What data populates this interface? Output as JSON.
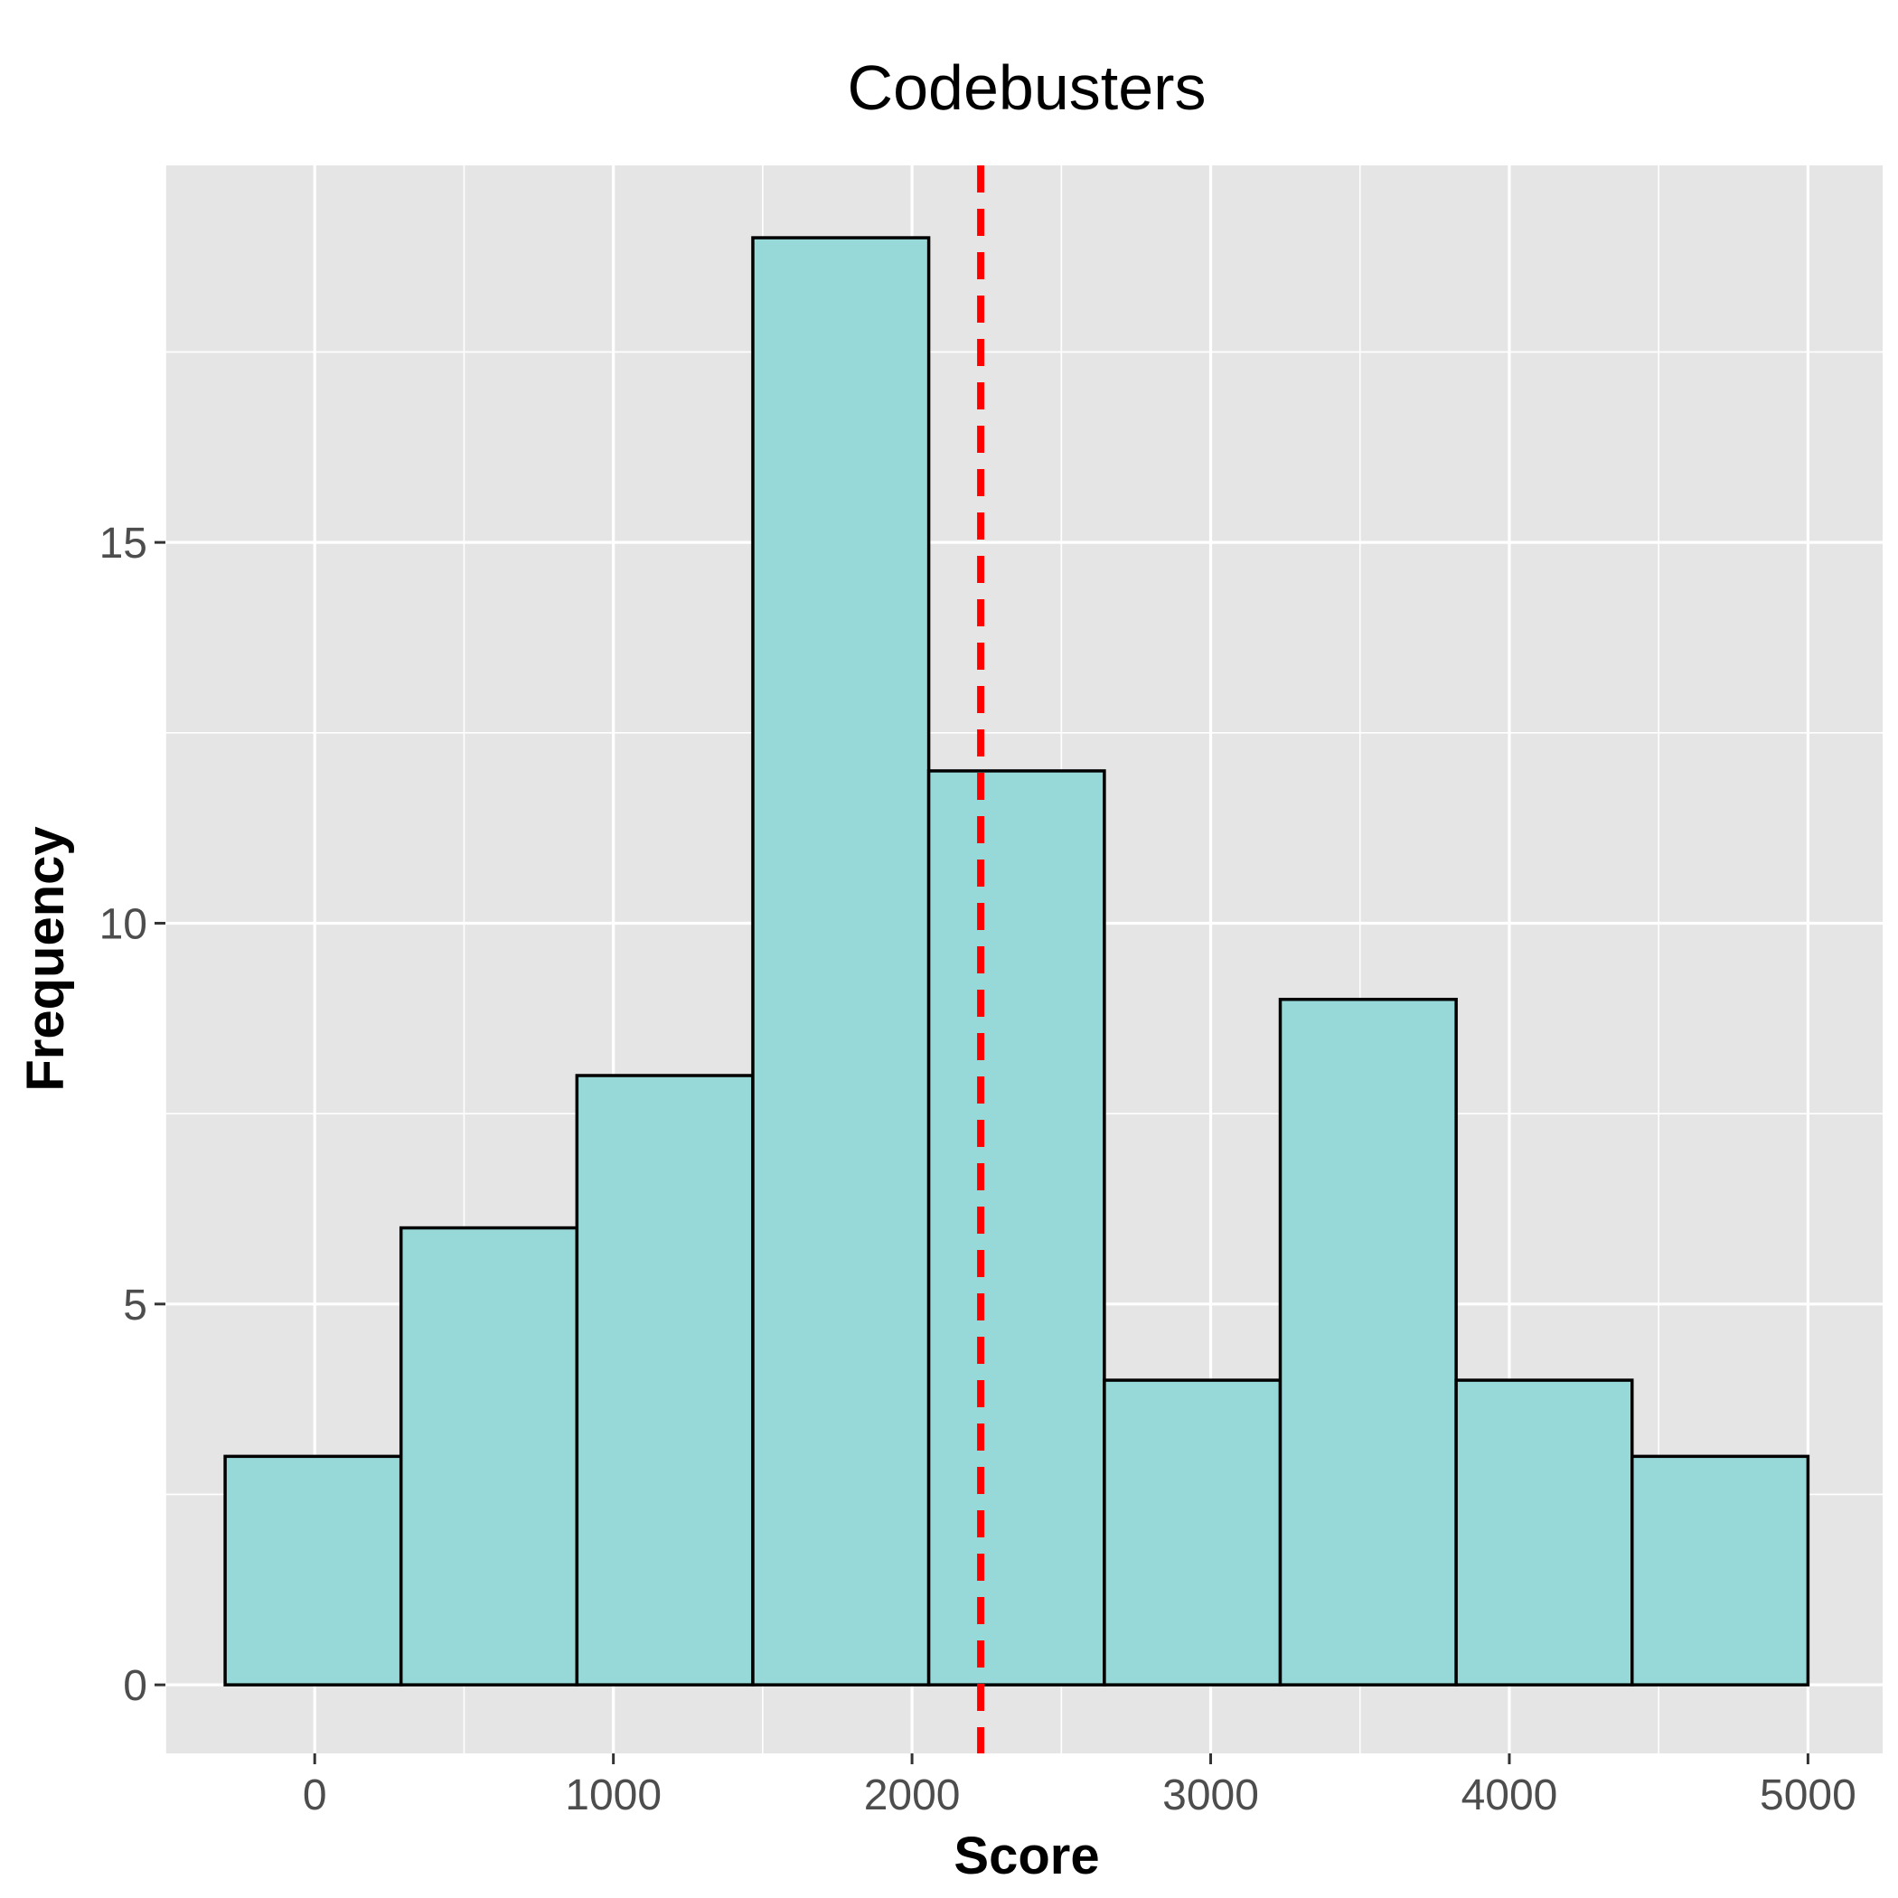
{
  "chart_data": {
    "type": "bar",
    "title": "Codebusters",
    "xlabel": "Score",
    "ylabel": "Frequency",
    "bin_edges": [
      -300,
      289,
      878,
      1467,
      2056,
      2644,
      3233,
      3822,
      4411,
      5000
    ],
    "values": [
      3,
      6,
      8,
      19,
      12,
      4,
      9,
      4,
      3
    ],
    "xlim": [
      -500,
      5250
    ],
    "ylim": [
      -0.9,
      19.95
    ],
    "x_ticks": [
      0,
      1000,
      2000,
      3000,
      4000,
      5000
    ],
    "y_ticks": [
      0,
      5,
      10,
      15
    ],
    "reference_line": {
      "x": 2230,
      "style": "dashed",
      "color": "#ff0000"
    },
    "bar_color": "#97d8d8",
    "panel_background": "#e5e5e5",
    "grid": true
  }
}
